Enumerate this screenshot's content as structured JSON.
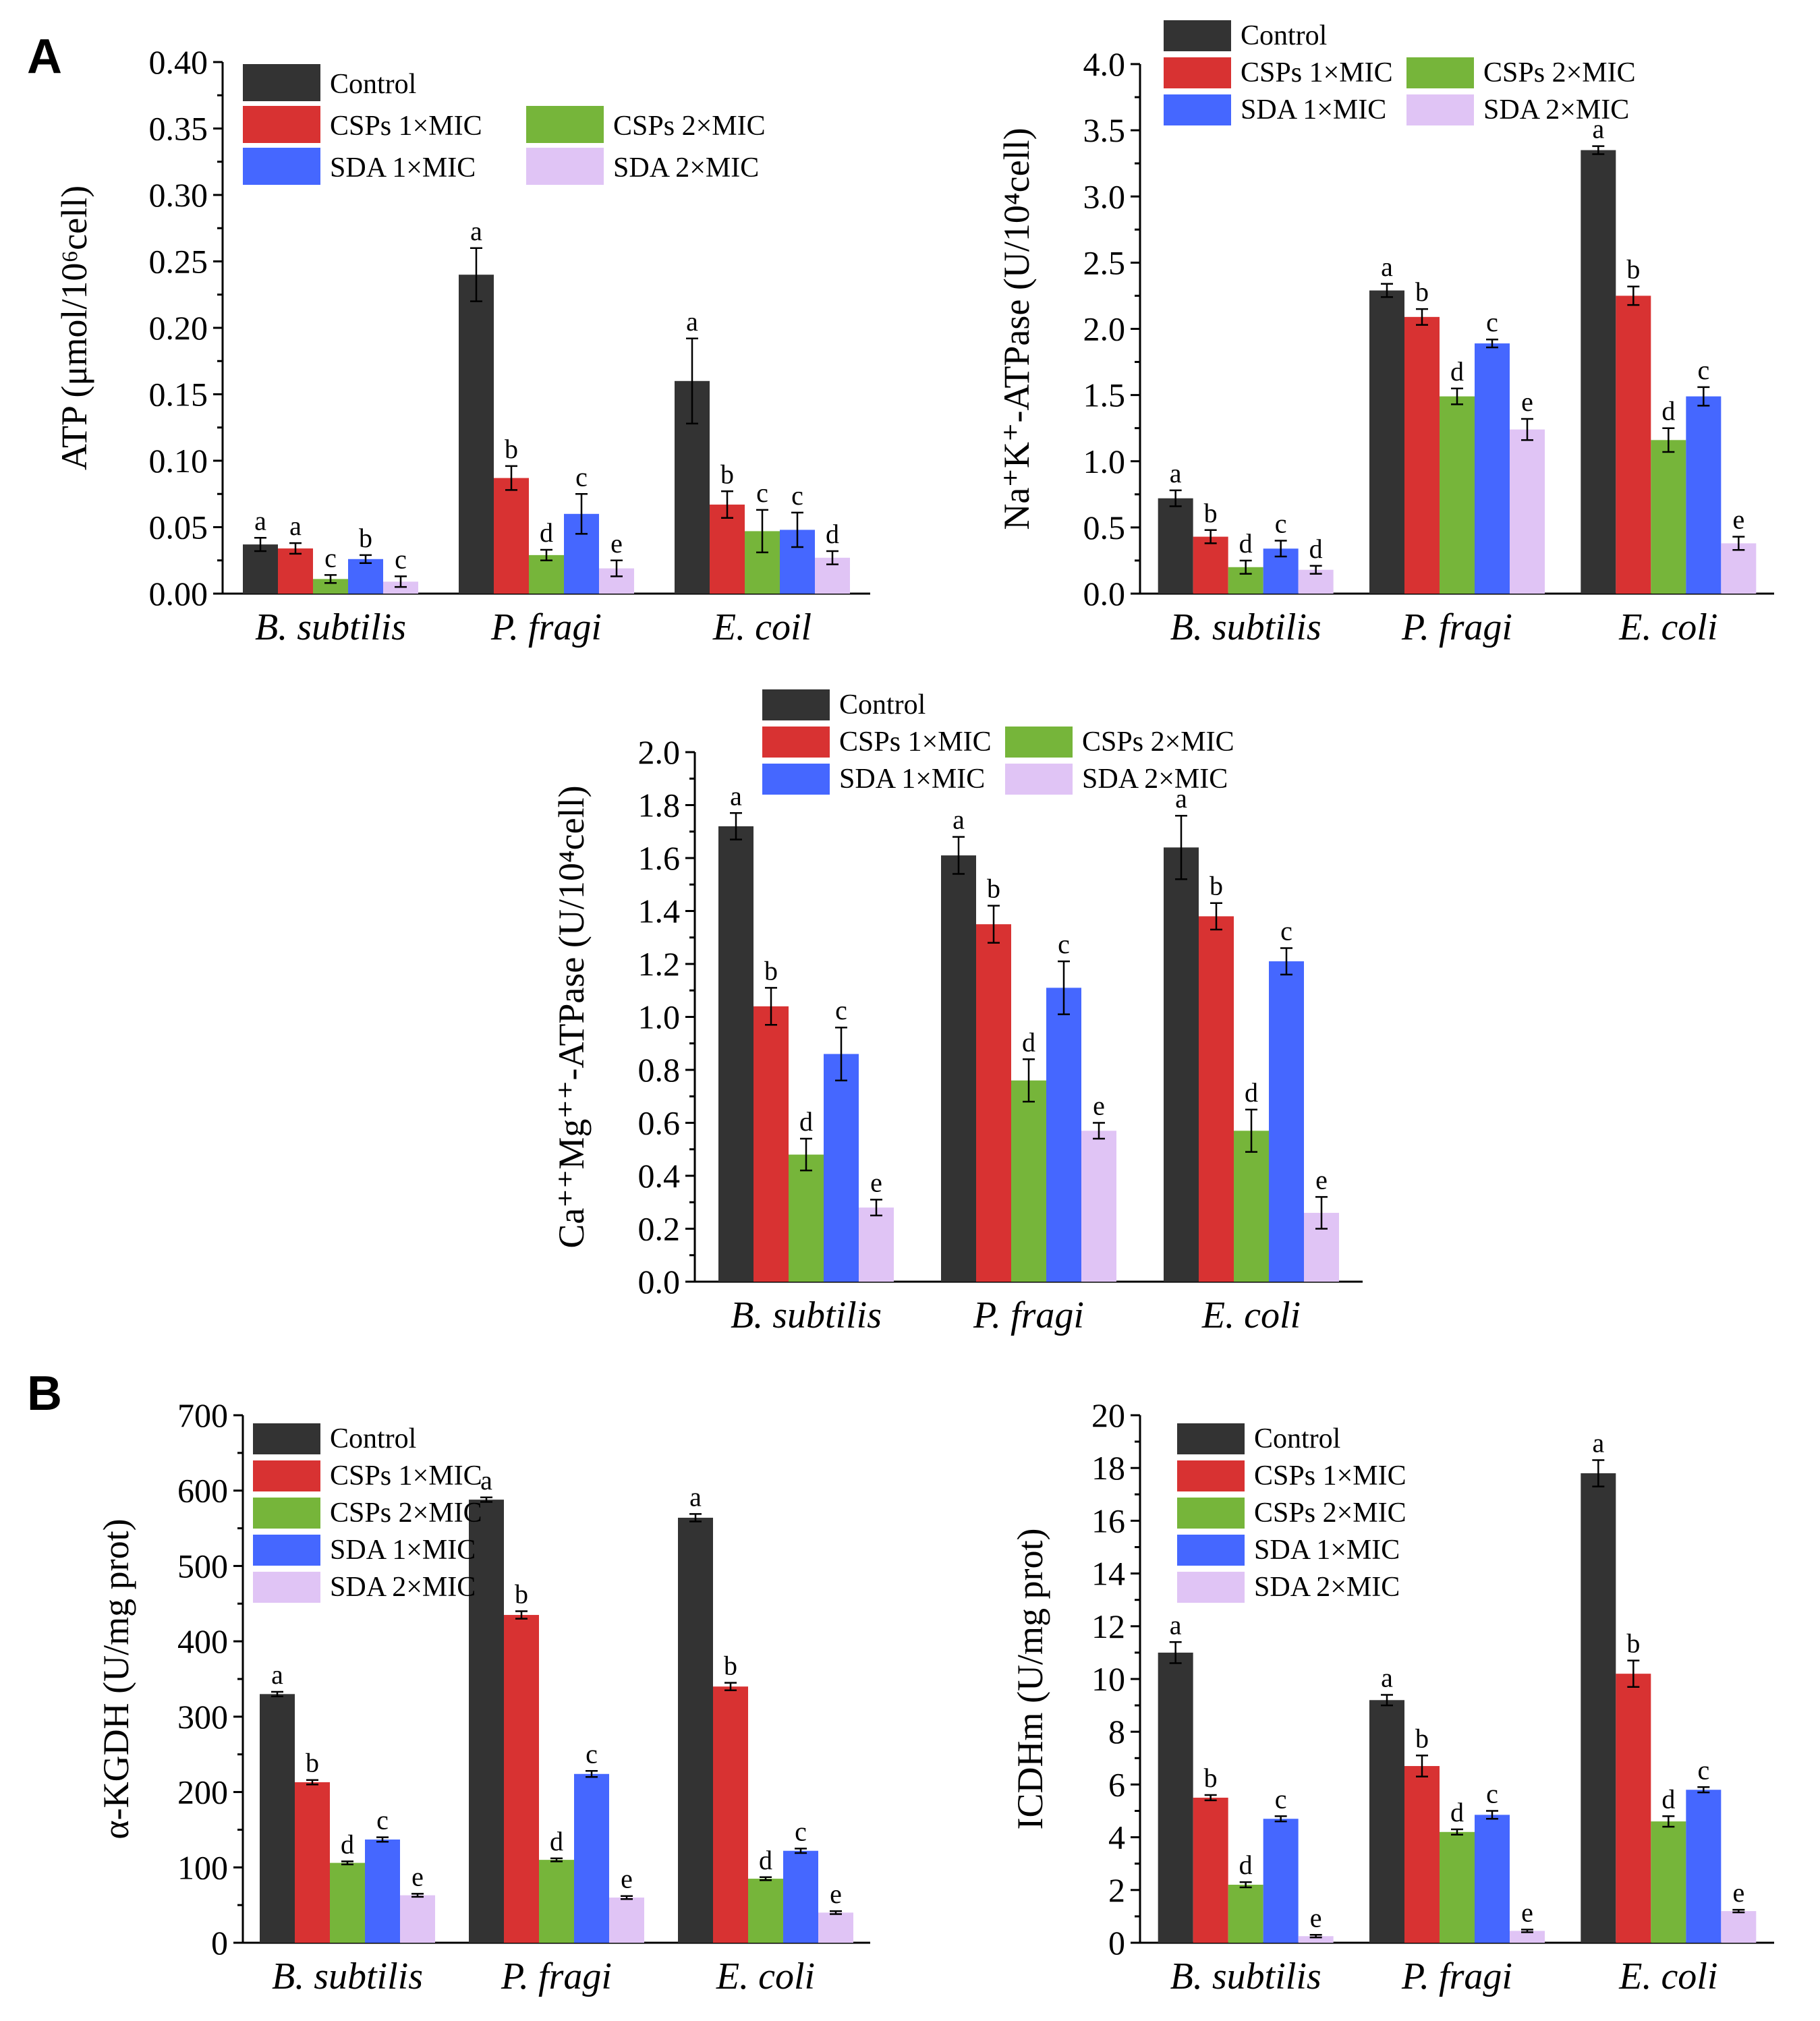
{
  "panels": [
    {
      "id": "A",
      "label": "A"
    },
    {
      "id": "B",
      "label": "B"
    }
  ],
  "chart_data": [
    {
      "type": "bar",
      "panel": "A",
      "name": "atp",
      "ylabel": "ATP (μmol/10⁶cell)",
      "ylim": [
        0,
        0.4
      ],
      "yticks": [
        "0.00",
        "0.05",
        "0.10",
        "0.15",
        "0.20",
        "0.25",
        "0.30",
        "0.35",
        "0.40"
      ],
      "categories": [
        "B. subtilis",
        "P. fragi",
        "E. coil"
      ],
      "series": [
        {
          "name": "Control",
          "color": "#333333",
          "values": [
            0.037,
            0.24,
            0.16
          ],
          "errors": [
            0.005,
            0.02,
            0.032
          ],
          "labels": [
            "a",
            "a",
            "a"
          ]
        },
        {
          "name": "CSPs 1×MIC",
          "color": "#d83232",
          "values": [
            0.034,
            0.087,
            0.067
          ],
          "errors": [
            0.004,
            0.009,
            0.01
          ],
          "labels": [
            "a",
            "b",
            "b"
          ]
        },
        {
          "name": "CSPs 2×MIC",
          "color": "#76b53a",
          "values": [
            0.011,
            0.029,
            0.047
          ],
          "errors": [
            0.003,
            0.004,
            0.016
          ],
          "labels": [
            "c",
            "d",
            "c"
          ]
        },
        {
          "name": "SDA  1×MIC",
          "color": "#4567ff",
          "values": [
            0.026,
            0.06,
            0.048
          ],
          "errors": [
            0.003,
            0.015,
            0.013
          ],
          "labels": [
            "b",
            "c",
            "c"
          ]
        },
        {
          "name": "SDA  2×MIC",
          "color": "#e0c4f5",
          "values": [
            0.009,
            0.019,
            0.027
          ],
          "errors": [
            0.004,
            0.006,
            0.005
          ],
          "labels": [
            "c",
            "e",
            "d"
          ]
        }
      ],
      "legend": {
        "entries": [
          "Control",
          "CSPs 1×MIC",
          "CSPs 2×MIC",
          "SDA  1×MIC",
          "SDA  2×MIC"
        ],
        "placement": "top-left",
        "columns": 2
      }
    },
    {
      "type": "bar",
      "panel": "A",
      "name": "nak",
      "ylabel": "Na⁺K⁺-ATPase (U/10⁴cell)",
      "ylim": [
        0,
        4.0
      ],
      "yticks": [
        "0.0",
        "0.5",
        "1.0",
        "1.5",
        "2.0",
        "2.5",
        "3.0",
        "3.5",
        "4.0"
      ],
      "categories": [
        "B. subtilis",
        "P. fragi",
        "E. coli"
      ],
      "series": [
        {
          "name": "Control",
          "color": "#333333",
          "values": [
            0.72,
            2.29,
            3.35
          ],
          "errors": [
            0.06,
            0.05,
            0.03
          ],
          "labels": [
            "a",
            "a",
            "a"
          ]
        },
        {
          "name": "CSPs 1×MIC",
          "color": "#d83232",
          "values": [
            0.43,
            2.09,
            2.25
          ],
          "errors": [
            0.05,
            0.06,
            0.07
          ],
          "labels": [
            "b",
            "b",
            "b"
          ]
        },
        {
          "name": "CSPs 2×MIC",
          "color": "#76b53a",
          "values": [
            0.2,
            1.49,
            1.16
          ],
          "errors": [
            0.05,
            0.06,
            0.09
          ],
          "labels": [
            "d",
            "d",
            "d"
          ]
        },
        {
          "name": "SDA  1×MIC",
          "color": "#4567ff",
          "values": [
            0.34,
            1.89,
            1.49
          ],
          "errors": [
            0.06,
            0.03,
            0.07
          ],
          "labels": [
            "c",
            "c",
            "c"
          ]
        },
        {
          "name": "SDA  2×MIC",
          "color": "#e0c4f5",
          "values": [
            0.18,
            1.24,
            0.38
          ],
          "errors": [
            0.03,
            0.08,
            0.05
          ],
          "labels": [
            "d",
            "e",
            "e"
          ]
        }
      ],
      "legend": {
        "entries": [
          "Control",
          "CSPs 1×MIC",
          "CSPs 2×MIC",
          "SDA  1×MIC",
          "SDA  2×MIC"
        ],
        "placement": "top",
        "columns": 2
      }
    },
    {
      "type": "bar",
      "panel": "A",
      "name": "camg",
      "ylabel": "Ca⁺⁺Mg⁺⁺-ATPase (U/10⁴cell)",
      "ylim": [
        0,
        2.0
      ],
      "yticks": [
        "0.0",
        "0.2",
        "0.4",
        "0.6",
        "0.8",
        "1.0",
        "1.2",
        "1.4",
        "1.6",
        "1.8",
        "2.0"
      ],
      "categories": [
        "B. subtilis",
        "P. fragi",
        "E. coli"
      ],
      "series": [
        {
          "name": "Control",
          "color": "#333333",
          "values": [
            1.72,
            1.61,
            1.64
          ],
          "errors": [
            0.05,
            0.07,
            0.12
          ],
          "labels": [
            "a",
            "a",
            "a"
          ]
        },
        {
          "name": "CSPs 1×MIC",
          "color": "#d83232",
          "values": [
            1.04,
            1.35,
            1.38
          ],
          "errors": [
            0.07,
            0.07,
            0.05
          ],
          "labels": [
            "b",
            "b",
            "b"
          ]
        },
        {
          "name": "CSPs 2×MIC",
          "color": "#76b53a",
          "values": [
            0.48,
            0.76,
            0.57
          ],
          "errors": [
            0.06,
            0.08,
            0.08
          ],
          "labels": [
            "d",
            "d",
            "d"
          ]
        },
        {
          "name": "SDA  1×MIC",
          "color": "#4567ff",
          "values": [
            0.86,
            1.11,
            1.21
          ],
          "errors": [
            0.1,
            0.1,
            0.05
          ],
          "labels": [
            "c",
            "c",
            "c"
          ]
        },
        {
          "name": "SDA  2×MIC",
          "color": "#e0c4f5",
          "values": [
            0.28,
            0.57,
            0.26
          ],
          "errors": [
            0.03,
            0.03,
            0.06
          ],
          "labels": [
            "e",
            "e",
            "e"
          ]
        }
      ],
      "legend": {
        "entries": [
          "Control",
          "CSPs 1×MIC",
          "CSPs 2×MIC",
          "SDA  1×MIC",
          "SDA  2×MIC"
        ],
        "placement": "top",
        "columns": 2
      }
    },
    {
      "type": "bar",
      "panel": "B",
      "name": "kgdh",
      "ylabel": "α-KGDH (U/mg prot)",
      "ylim": [
        0,
        700
      ],
      "yticks": [
        "0",
        "100",
        "200",
        "300",
        "400",
        "500",
        "600",
        "700"
      ],
      "categories": [
        "B. subtilis",
        "P. fragi",
        "E. coli"
      ],
      "series": [
        {
          "name": "Control",
          "color": "#333333",
          "values": [
            330,
            588,
            564
          ],
          "errors": [
            3,
            3,
            5
          ],
          "labels": [
            "a",
            "a",
            "a"
          ]
        },
        {
          "name": "CSPs 1×MIC",
          "color": "#d83232",
          "values": [
            213,
            435,
            340
          ],
          "errors": [
            3,
            5,
            5
          ],
          "labels": [
            "b",
            "b",
            "b"
          ]
        },
        {
          "name": "CSPs 2×MIC",
          "color": "#76b53a",
          "values": [
            106,
            110,
            85
          ],
          "errors": [
            2,
            2,
            2
          ],
          "labels": [
            "d",
            "d",
            "d"
          ]
        },
        {
          "name": "SDA  1×MIC",
          "color": "#4567ff",
          "values": [
            137,
            224,
            122
          ],
          "errors": [
            3,
            4,
            3
          ],
          "labels": [
            "c",
            "c",
            "c"
          ]
        },
        {
          "name": "SDA  2×MIC",
          "color": "#e0c4f5",
          "values": [
            63,
            60,
            40
          ],
          "errors": [
            2,
            2,
            2
          ],
          "labels": [
            "e",
            "e",
            "e"
          ]
        }
      ],
      "legend": {
        "entries": [
          "Control",
          "CSPs 1×MIC",
          "CSPs 2×MIC",
          "SDA  1×MIC",
          "SDA  2×MIC"
        ],
        "placement": "top-left",
        "columns": 1
      }
    },
    {
      "type": "bar",
      "panel": "B",
      "name": "icdhm",
      "ylabel": "ICDHm (U/mg prot)",
      "ylim": [
        0,
        20
      ],
      "yticks": [
        "0",
        "2",
        "4",
        "6",
        "8",
        "10",
        "12",
        "14",
        "16",
        "18",
        "20"
      ],
      "categories": [
        "B. subtilis",
        "P. fragi",
        "E. coli"
      ],
      "series": [
        {
          "name": "Control",
          "color": "#333333",
          "values": [
            11.0,
            9.2,
            17.8
          ],
          "errors": [
            0.4,
            0.2,
            0.5
          ],
          "labels": [
            "a",
            "a",
            "a"
          ]
        },
        {
          "name": "CSPs 1×MIC",
          "color": "#d83232",
          "values": [
            5.5,
            6.7,
            10.2
          ],
          "errors": [
            0.1,
            0.4,
            0.5
          ],
          "labels": [
            "b",
            "b",
            "b"
          ]
        },
        {
          "name": "CSPs 2×MIC",
          "color": "#76b53a",
          "values": [
            2.2,
            4.2,
            4.6
          ],
          "errors": [
            0.1,
            0.1,
            0.2
          ],
          "labels": [
            "d",
            "d",
            "d"
          ]
        },
        {
          "name": "SDA  1×MIC",
          "color": "#4567ff",
          "values": [
            4.7,
            4.85,
            5.8
          ],
          "errors": [
            0.1,
            0.15,
            0.1
          ],
          "labels": [
            "c",
            "c",
            "c"
          ]
        },
        {
          "name": "SDA  2×MIC",
          "color": "#e0c4f5",
          "values": [
            0.25,
            0.45,
            1.2
          ],
          "errors": [
            0.05,
            0.05,
            0.05
          ],
          "labels": [
            "e",
            "e",
            "e"
          ]
        }
      ],
      "legend": {
        "entries": [
          "Control",
          "CSPs 1×MIC",
          "CSPs 2×MIC",
          "SDA  1×MIC",
          "SDA  2×MIC"
        ],
        "placement": "top-left",
        "columns": 1
      }
    }
  ]
}
